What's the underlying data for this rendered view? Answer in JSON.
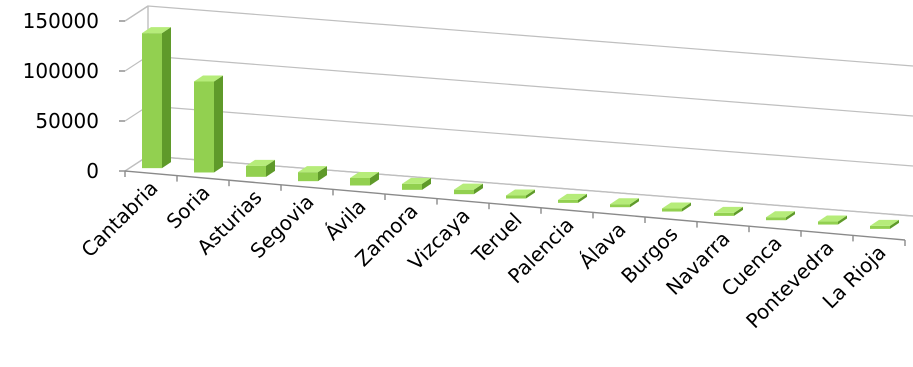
{
  "chart_data": {
    "type": "bar",
    "style": "3d-column",
    "title": "",
    "xlabel": "",
    "ylabel": "",
    "ylim": [
      0,
      150000
    ],
    "yticks": [
      {
        "value": 0,
        "label": "0"
      },
      {
        "value": 50000,
        "label": "50000"
      },
      {
        "value": 100000,
        "label": "100000"
      },
      {
        "value": 150000,
        "label": "150000"
      }
    ],
    "grid": true,
    "legend": "none",
    "colors": {
      "front": "#92d050",
      "top": "#b6ec7a",
      "side": "#5f9a2a",
      "grid": "#bfbfbf"
    },
    "categories": [
      "Cantabria",
      "Soria",
      "Asturias",
      "Segovia",
      "Ávila",
      "Zamora",
      "Vizcaya",
      "Teruel",
      "Palencia",
      "Álava",
      "Burgos",
      "Navarra",
      "Cuenca",
      "Pontevedra",
      "La Rioja"
    ],
    "values": [
      135000,
      91000,
      11000,
      9000,
      7500,
      6000,
      4500,
      2000,
      600,
      400,
      300,
      200,
      150,
      100,
      80
    ]
  }
}
